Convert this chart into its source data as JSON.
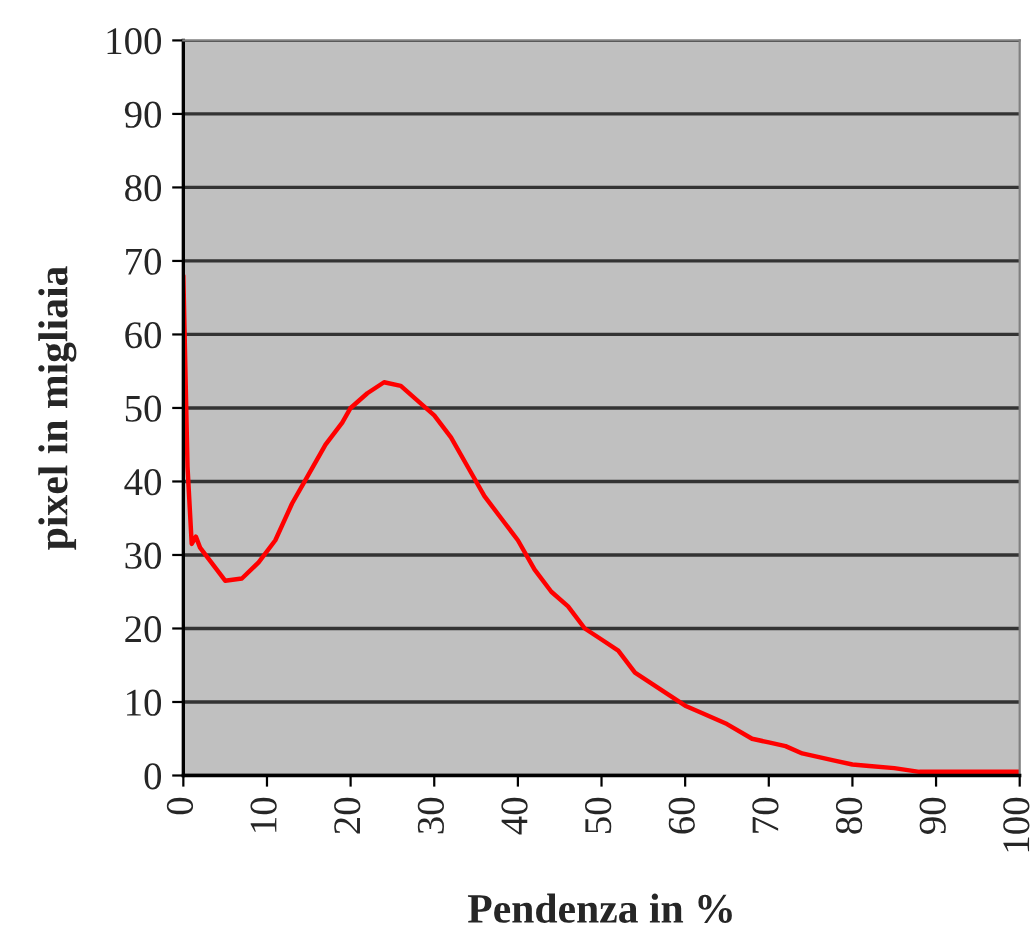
{
  "chart_data": {
    "type": "line",
    "xlabel": "Pendenza in %",
    "ylabel": "pixel in migliaia",
    "x": [
      0,
      0.5,
      1,
      1.5,
      2,
      4,
      5,
      7,
      9,
      11,
      13,
      15,
      17,
      19,
      20,
      22,
      24,
      26,
      28,
      30,
      32,
      34,
      36,
      38,
      40,
      42,
      44,
      46,
      48,
      50,
      52,
      54,
      56,
      58,
      60,
      62,
      65,
      68,
      70,
      72,
      74,
      76,
      78,
      80,
      82,
      85,
      88,
      92,
      96,
      100
    ],
    "series": [
      {
        "color": "#ff0000",
        "values": [
          68,
          42,
          31.5,
          32.5,
          31,
          28,
          26.5,
          26.8,
          29,
          32,
          37,
          41,
          45,
          48,
          50,
          52,
          53.5,
          53,
          51,
          49,
          46,
          42,
          38,
          35,
          32,
          28,
          25,
          23,
          20,
          18.5,
          17,
          14,
          12.5,
          11,
          9.5,
          8.5,
          7,
          5,
          4.5,
          4,
          3,
          2.5,
          2,
          1.5,
          1.3,
          1,
          0.5,
          0.5,
          0.5,
          0.5
        ]
      }
    ],
    "xlim": [
      0,
      100
    ],
    "xticks": [
      0,
      10,
      20,
      30,
      40,
      50,
      60,
      70,
      80,
      90,
      100
    ],
    "ylim": [
      0,
      100
    ],
    "yticks": [
      0,
      10,
      20,
      30,
      40,
      50,
      60,
      70,
      80,
      90,
      100
    ],
    "grid": "y",
    "legend": false,
    "marker": "none",
    "line_style": "solid"
  }
}
